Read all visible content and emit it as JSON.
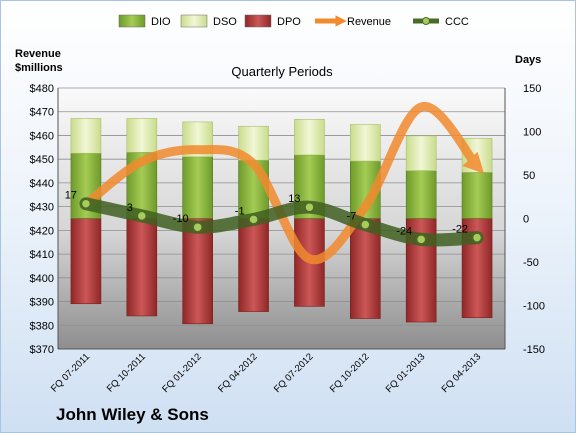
{
  "company": "John Wiley & Sons",
  "chart_data": {
    "type": "bar",
    "title": "Quarterly Periods",
    "left_axis_label": [
      "Revenue",
      "$millions"
    ],
    "right_axis_label": "Days",
    "categories": [
      "FQ 07-2011",
      "FQ 10-2011",
      "FQ 01-2012",
      "FQ 04-2012",
      "FQ 07-2012",
      "FQ 10-2012",
      "FQ 01-2013",
      "FQ 04-2013"
    ],
    "left_ylim": [
      370,
      480
    ],
    "left_ticks": [
      "$370",
      "$380",
      "$390",
      "$400",
      "$410",
      "$420",
      "$430",
      "$440",
      "$450",
      "$460",
      "$470",
      "$480"
    ],
    "right_ylim": [
      -150,
      150
    ],
    "right_ticks": [
      "150",
      "100",
      "50",
      "0",
      "-50",
      "-100",
      "-150"
    ],
    "legend_position": "top",
    "grid": true,
    "series": [
      {
        "name": "DIO",
        "axis": "right",
        "color": "#8cb83e",
        "values": [
          75,
          76,
          71,
          67,
          73,
          66,
          55,
          53
        ]
      },
      {
        "name": "DSO",
        "axis": "right",
        "color": "#e3eeb8",
        "values": [
          40,
          39,
          40,
          39,
          41,
          42,
          40,
          39
        ]
      },
      {
        "name": "DPO",
        "axis": "right",
        "color": "#b33b3b",
        "values": [
          -98,
          -112,
          -121,
          -107,
          -101,
          -115,
          -119,
          -114
        ]
      },
      {
        "name": "Revenue",
        "axis": "left",
        "color": "#f28a2e",
        "values": [
          431,
          449,
          454,
          448,
          408,
          430,
          472,
          447
        ]
      },
      {
        "name": "CCC",
        "axis": "right",
        "color": "#4a6b28",
        "values": [
          17,
          3,
          -10,
          -1,
          13,
          -7,
          -24,
          -22
        ],
        "labels": [
          "17",
          "3",
          "-10",
          "-1",
          "13",
          "-7",
          "-24",
          "-22"
        ]
      }
    ]
  }
}
